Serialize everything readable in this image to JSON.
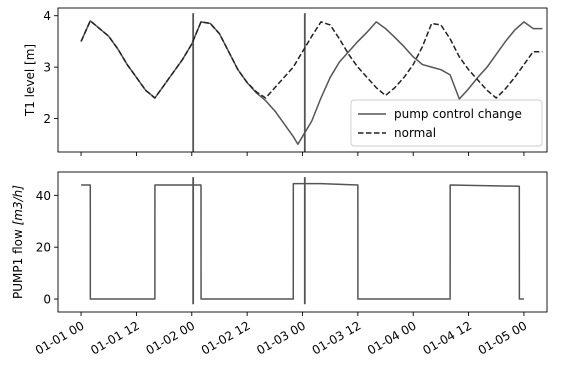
{
  "chart_data": [
    {
      "type": "line",
      "ylabel": "T1 level [m]",
      "ylim": [
        1.35,
        4.15
      ],
      "yticks": [
        2,
        3,
        4
      ],
      "ytick_labels": [
        "2",
        "3",
        "4"
      ],
      "x_unit": "hours since 01-01 00",
      "xlim": [
        -5,
        101
      ],
      "legend_position": "lower-right",
      "legend": [
        "pump control change",
        "normal"
      ],
      "vlines": [
        {
          "x": 24.3,
          "y_range": [
            1.35,
            4.05
          ]
        },
        {
          "x": 48.5,
          "y_range": [
            1.35,
            4.05
          ]
        }
      ],
      "series": [
        {
          "name": "pump control change",
          "color": "#555555",
          "style": "solid",
          "x": [
            0,
            2,
            4,
            6,
            8,
            10,
            12,
            14,
            16,
            18,
            20,
            22,
            24,
            26,
            28,
            30,
            32,
            34,
            36,
            38,
            40,
            42,
            44,
            46,
            47,
            48,
            50,
            52,
            54,
            56,
            58,
            60,
            62,
            64,
            66,
            68,
            70,
            72,
            74,
            76,
            78,
            80,
            82,
            84,
            86,
            88,
            90,
            92,
            94,
            96,
            98,
            100
          ],
          "y": [
            3.5,
            3.9,
            3.75,
            3.6,
            3.35,
            3.05,
            2.8,
            2.55,
            2.4,
            2.65,
            2.9,
            3.15,
            3.45,
            3.88,
            3.85,
            3.65,
            3.3,
            2.95,
            2.7,
            2.5,
            2.35,
            2.15,
            1.9,
            1.65,
            1.5,
            1.65,
            1.95,
            2.4,
            2.8,
            3.1,
            3.3,
            3.5,
            3.68,
            3.88,
            3.75,
            3.58,
            3.4,
            3.2,
            3.05,
            3.0,
            2.95,
            2.85,
            2.38,
            2.58,
            2.8,
            3.0,
            3.25,
            3.5,
            3.72,
            3.88,
            3.75,
            3.75
          ]
        },
        {
          "name": "normal",
          "color": "#222222",
          "style": "dashed",
          "x": [
            0,
            2,
            4,
            6,
            8,
            10,
            12,
            14,
            16,
            18,
            20,
            22,
            24,
            26,
            28,
            30,
            32,
            34,
            36,
            38,
            40,
            42,
            44,
            46,
            48,
            50,
            52,
            54,
            56,
            58,
            60,
            62,
            64,
            66,
            68,
            70,
            72,
            74,
            76,
            78,
            80,
            82,
            84,
            86,
            88,
            90,
            92,
            94,
            96,
            98,
            100
          ],
          "y": [
            3.5,
            3.9,
            3.75,
            3.6,
            3.35,
            3.05,
            2.8,
            2.55,
            2.4,
            2.65,
            2.9,
            3.15,
            3.45,
            3.88,
            3.85,
            3.65,
            3.3,
            2.95,
            2.7,
            2.52,
            2.4,
            2.6,
            2.8,
            3.0,
            3.3,
            3.6,
            3.88,
            3.82,
            3.55,
            3.25,
            3.0,
            2.8,
            2.6,
            2.45,
            2.6,
            2.8,
            3.05,
            3.4,
            3.85,
            3.82,
            3.55,
            3.2,
            2.95,
            2.75,
            2.55,
            2.4,
            2.58,
            2.8,
            3.05,
            3.3,
            3.3
          ]
        }
      ]
    },
    {
      "type": "line",
      "ylabel": "PUMP1 flow [m3/h]",
      "ylim": [
        -5,
        49
      ],
      "yticks": [
        0,
        20,
        40
      ],
      "ytick_labels": [
        "0",
        "20",
        "40"
      ],
      "x_unit": "hours since 01-01 00",
      "xlim": [
        -5,
        101
      ],
      "xticks": [
        0,
        12,
        24,
        36,
        48,
        60,
        72,
        84,
        96
      ],
      "xtick_labels": [
        "01-01 00",
        "01-01 12",
        "01-02 00",
        "01-02 12",
        "01-03 00",
        "01-03 12",
        "01-04 00",
        "01-04 12",
        "01-05 00"
      ],
      "vlines": [
        {
          "x": 24.3,
          "y_range": [
            -2,
            47
          ]
        },
        {
          "x": 48.5,
          "y_range": [
            -2,
            47
          ]
        }
      ],
      "series": [
        {
          "name": "pump control change",
          "color": "#555555",
          "style": "solid",
          "x": [
            0,
            2,
            2.01,
            16,
            16.01,
            26,
            26.01,
            46,
            46.01,
            52,
            60,
            60.01,
            80,
            80.01,
            95,
            95.01,
            96
          ],
          "y": [
            44,
            44,
            0,
            0,
            44,
            44,
            0,
            0,
            44.5,
            44.5,
            44,
            0,
            0,
            44,
            43.5,
            0,
            0
          ]
        }
      ]
    }
  ]
}
